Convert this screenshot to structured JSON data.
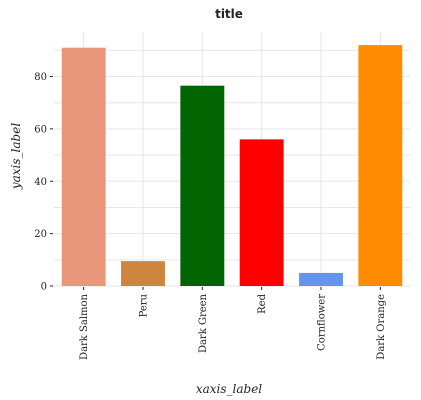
{
  "chart_data": {
    "type": "bar",
    "title": "title",
    "xlabel": "xaxis_label",
    "ylabel": "yaxis_label",
    "categories": [
      "Dark Salmon",
      "Peru",
      "Dark Green",
      "Red",
      "Cornflower",
      "Dark Orange"
    ],
    "values": [
      91,
      9.5,
      76.5,
      56,
      5,
      92
    ],
    "colors": [
      "#E9967A",
      "#CD853F",
      "#006400",
      "#FF0000",
      "#6495ED",
      "#FF8C00"
    ],
    "ylim": [
      0,
      97
    ],
    "yticks": [
      0,
      20,
      40,
      60,
      80
    ],
    "grid": true,
    "legend": "none"
  }
}
